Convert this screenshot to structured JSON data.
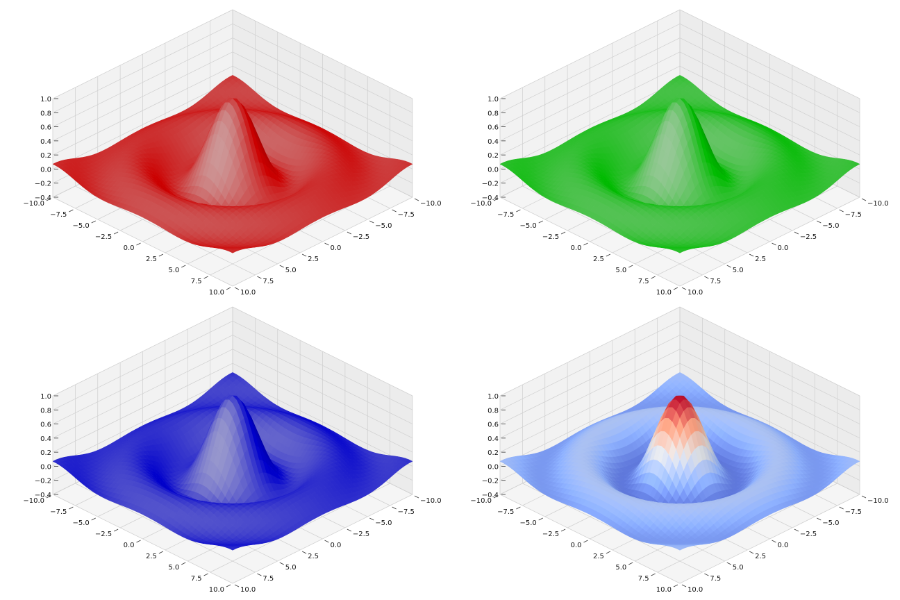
{
  "chart_data": [
    {
      "type": "surface3d",
      "name": "red-surface",
      "colormap": "single",
      "color": "#cc0000",
      "z_ticks": [
        "1.0",
        "0.8",
        "0.6",
        "0.4",
        "0.2",
        "0.0",
        "−0.2",
        "−0.4"
      ],
      "x_ticks": [
        "−10.0",
        "−7.5",
        "−5.0",
        "−2.5",
        "0.0",
        "2.5",
        "5.0",
        "7.5",
        "10.0"
      ],
      "y_ticks": [
        "−10.0",
        "−7.5",
        "−5.0",
        "−2.5",
        "0.0",
        "2.5",
        "5.0",
        "7.5",
        "10.0"
      ],
      "xlim": [
        -10,
        10
      ],
      "ylim": [
        -10,
        10
      ],
      "zlim": [
        -0.4,
        1.0
      ],
      "function": "sin(r)/r",
      "grid": true
    },
    {
      "type": "surface3d",
      "name": "green-surface",
      "colormap": "single",
      "color": "#00bb00",
      "z_ticks": [
        "1.0",
        "0.8",
        "0.6",
        "0.4",
        "0.2",
        "0.0",
        "−0.2",
        "−0.4"
      ],
      "x_ticks": [
        "−10.0",
        "−7.5",
        "−5.0",
        "−2.5",
        "0.0",
        "2.5",
        "5.0",
        "7.5",
        "10.0"
      ],
      "y_ticks": [
        "−10.0",
        "−7.5",
        "−5.0",
        "−2.5",
        "0.0",
        "2.5",
        "5.0",
        "7.5",
        "10.0"
      ],
      "xlim": [
        -10,
        10
      ],
      "ylim": [
        -10,
        10
      ],
      "zlim": [
        -0.4,
        1.0
      ],
      "function": "sin(r)/r",
      "grid": true
    },
    {
      "type": "surface3d",
      "name": "blue-surface",
      "colormap": "single",
      "color": "#0000cc",
      "z_ticks": [
        "1.0",
        "0.8",
        "0.6",
        "0.4",
        "0.2",
        "0.0",
        "−0.2",
        "−0.4"
      ],
      "x_ticks": [
        "−10.0",
        "−7.5",
        "−5.0",
        "−2.5",
        "0.0",
        "2.5",
        "5.0",
        "7.5",
        "10.0"
      ],
      "y_ticks": [
        "−10.0",
        "−7.5",
        "−5.0",
        "−2.5",
        "0.0",
        "2.5",
        "5.0",
        "7.5",
        "10.0"
      ],
      "xlim": [
        -10,
        10
      ],
      "ylim": [
        -10,
        10
      ],
      "zlim": [
        -0.4,
        1.0
      ],
      "function": "sin(r)/r",
      "grid": true
    },
    {
      "type": "surface3d",
      "name": "coolwarm-surface",
      "colormap": "coolwarm",
      "color": "#b40426",
      "z_ticks": [
        "1.0",
        "0.8",
        "0.6",
        "0.4",
        "0.2",
        "0.0",
        "−0.2",
        "−0.4"
      ],
      "x_ticks": [
        "−10.0",
        "−7.5",
        "−5.0",
        "−2.5",
        "0.0",
        "2.5",
        "5.0",
        "7.5",
        "10.0"
      ],
      "y_ticks": [
        "−10.0",
        "−7.5",
        "−5.0",
        "−2.5",
        "0.0",
        "2.5",
        "5.0",
        "7.5",
        "10.0"
      ],
      "xlim": [
        -10,
        10
      ],
      "ylim": [
        -10,
        10
      ],
      "zlim": [
        -0.4,
        1.0
      ],
      "function": "sin(r)/r",
      "grid": true
    }
  ]
}
